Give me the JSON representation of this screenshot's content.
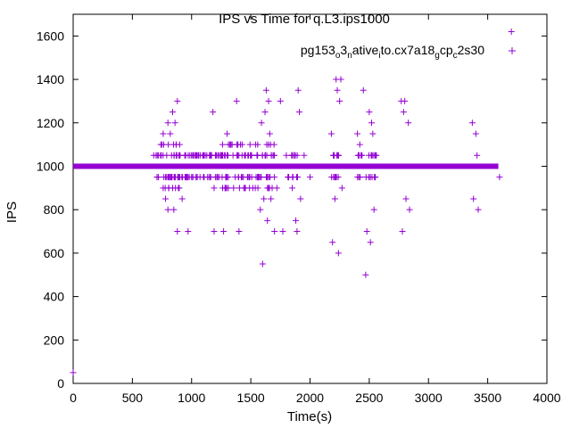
{
  "chart_data": {
    "type": "scatter",
    "title": "IPS vs Time for q.L3.ips1000",
    "xlabel": "Time(s)",
    "ylabel": "IPS",
    "xlim": [
      0,
      4000
    ],
    "ylim": [
      0,
      1700
    ],
    "x_ticks": [
      "0",
      "500",
      "1000",
      "1500",
      "2000",
      "2500",
      "3000",
      "3500",
      "4000"
    ],
    "y_ticks": [
      "0",
      "200",
      "400",
      "600",
      "800",
      "1000",
      "1200",
      "1400",
      "1600"
    ],
    "grid": false,
    "legend_position": "top-right",
    "marker": "plus",
    "color": "#9400d3",
    "series": [
      {
        "name": "pg153_o3_native_to.cx7a18_g cp_c2s30",
        "name_parts": [
          "pg153",
          "o",
          "3",
          "n",
          "ative",
          "i",
          "to.cx7a18",
          "g",
          "cp",
          "c",
          "2s30"
        ],
        "baseline": {
          "y": 1000,
          "x_range": [
            0,
            3590
          ]
        },
        "points": [
          [
            0,
            50
          ],
          [
            700,
            1050
          ],
          [
            720,
            950
          ],
          [
            740,
            1100
          ],
          [
            760,
            900
          ],
          [
            760,
            1150
          ],
          [
            780,
            850
          ],
          [
            790,
            1050
          ],
          [
            800,
            800
          ],
          [
            800,
            1200
          ],
          [
            820,
            1150
          ],
          [
            820,
            950
          ],
          [
            840,
            1250
          ],
          [
            840,
            900
          ],
          [
            850,
            800
          ],
          [
            860,
            1200
          ],
          [
            870,
            1100
          ],
          [
            880,
            1300
          ],
          [
            880,
            700
          ],
          [
            900,
            950
          ],
          [
            920,
            850
          ],
          [
            950,
            1050
          ],
          [
            970,
            700
          ],
          [
            1000,
            950
          ],
          [
            1100,
            1050
          ],
          [
            1180,
            1250
          ],
          [
            1190,
            900
          ],
          [
            1190,
            700
          ],
          [
            1220,
            950
          ],
          [
            1260,
            1050
          ],
          [
            1270,
            700
          ],
          [
            1300,
            1150
          ],
          [
            1310,
            900
          ],
          [
            1340,
            1100
          ],
          [
            1380,
            1300
          ],
          [
            1390,
            1050
          ],
          [
            1400,
            700
          ],
          [
            1420,
            950
          ],
          [
            1450,
            900
          ],
          [
            1500,
            1050
          ],
          [
            1540,
            1100
          ],
          [
            1560,
            900
          ],
          [
            1580,
            800
          ],
          [
            1590,
            1200
          ],
          [
            1600,
            550
          ],
          [
            1610,
            850
          ],
          [
            1620,
            1250
          ],
          [
            1630,
            1350
          ],
          [
            1640,
            750
          ],
          [
            1650,
            1300
          ],
          [
            1660,
            1150
          ],
          [
            1670,
            850
          ],
          [
            1700,
            700
          ],
          [
            1720,
            900
          ],
          [
            1750,
            1300
          ],
          [
            1770,
            700
          ],
          [
            1800,
            1050
          ],
          [
            1850,
            900
          ],
          [
            1880,
            750
          ],
          [
            1890,
            700
          ],
          [
            1900,
            1350
          ],
          [
            1910,
            1250
          ],
          [
            1920,
            850
          ],
          [
            1950,
            1050
          ],
          [
            2000,
            950
          ],
          [
            2180,
            1150
          ],
          [
            2190,
            650
          ],
          [
            2200,
            1050
          ],
          [
            2210,
            850
          ],
          [
            2220,
            1400
          ],
          [
            2230,
            1350
          ],
          [
            2240,
            600
          ],
          [
            2250,
            1300
          ],
          [
            2260,
            1400
          ],
          [
            2270,
            900
          ],
          [
            2400,
            1150
          ],
          [
            2420,
            1100
          ],
          [
            2450,
            1350
          ],
          [
            2470,
            500
          ],
          [
            2480,
            700
          ],
          [
            2500,
            1250
          ],
          [
            2510,
            650
          ],
          [
            2520,
            1200
          ],
          [
            2530,
            1150
          ],
          [
            2540,
            800
          ],
          [
            2560,
            1050
          ],
          [
            2770,
            1300
          ],
          [
            2780,
            700
          ],
          [
            2790,
            1250
          ],
          [
            2800,
            1300
          ],
          [
            2810,
            850
          ],
          [
            2830,
            1200
          ],
          [
            2840,
            800
          ],
          [
            3370,
            1200
          ],
          [
            3380,
            850
          ],
          [
            3400,
            1150
          ],
          [
            3410,
            1050
          ],
          [
            3420,
            800
          ],
          [
            3600,
            950
          ],
          [
            3700,
            1620
          ]
        ]
      }
    ]
  }
}
